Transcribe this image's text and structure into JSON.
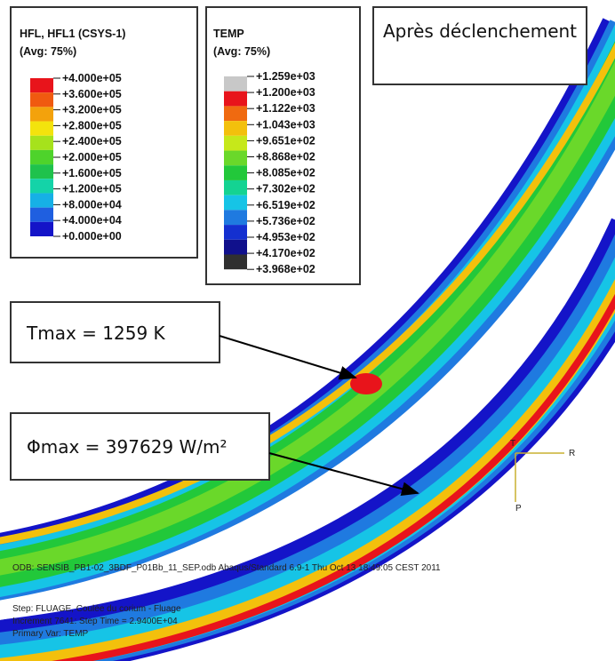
{
  "legend_hfl": {
    "title": "HFL, HFL1 (CSYS-1)",
    "avg": "(Avg: 75%)",
    "labels": [
      "+4.000e+05",
      "+3.600e+05",
      "+3.200e+05",
      "+2.800e+05",
      "+2.400e+05",
      "+2.000e+05",
      "+1.600e+05",
      "+1.200e+05",
      "+8.000e+04",
      "+4.000e+04",
      "+0.000e+00"
    ],
    "colors": [
      "#e8141b",
      "#f05a10",
      "#f3a20c",
      "#f3e30d",
      "#a6e21c",
      "#4ed32b",
      "#1fc24c",
      "#14d3a8",
      "#16b0e6",
      "#1f5fe0",
      "#1414c8"
    ]
  },
  "legend_temp": {
    "title": "TEMP",
    "avg": "(Avg: 75%)",
    "labels": [
      "+1.259e+03",
      "+1.200e+03",
      "+1.122e+03",
      "+1.043e+03",
      "+9.651e+02",
      "+8.868e+02",
      "+8.085e+02",
      "+7.302e+02",
      "+6.519e+02",
      "+5.736e+02",
      "+4.953e+02",
      "+4.170e+02",
      "+3.968e+02"
    ],
    "colors": [
      "#c8c8c8",
      "#e8141b",
      "#f06a10",
      "#f3c00c",
      "#c6e81a",
      "#6ad82a",
      "#22c83a",
      "#14d392",
      "#16c4e6",
      "#1f7ae0",
      "#1430d0",
      "#10108c",
      "#303030"
    ]
  },
  "state_label": "Après déclenchement",
  "annotations": [
    "Tmax = 1259 K",
    "Φmax = 397629 W/m²"
  ],
  "triad": [
    "T",
    "R",
    "P"
  ],
  "footer": {
    "odb": "ODB: SENSIB_PB1-02_3BDF_P01Bb_11_SEP.odb    Abaqus/Standard 6.9-1    Thu Oct 13 18:49:05 CEST 2011",
    "step": "Step: FLUAGE, Coulée du corium - Fluage",
    "increment": "Increment  7641: Step Time =   2.9400E+04",
    "var": "Primary Var: TEMP"
  }
}
